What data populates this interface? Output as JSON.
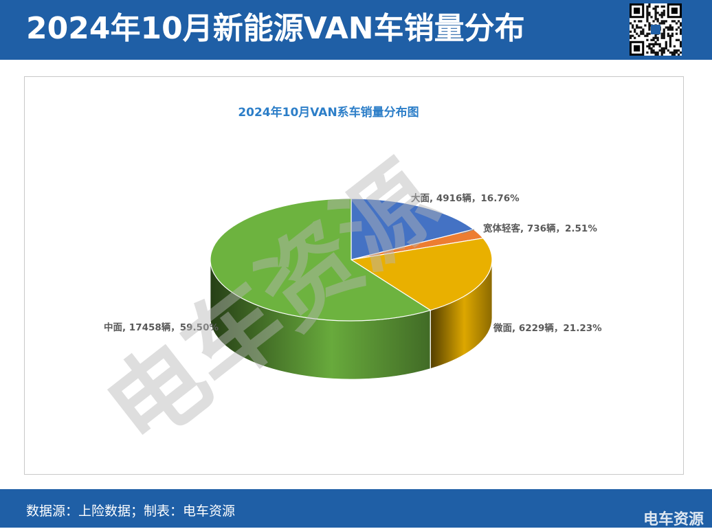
{
  "header": {
    "title": "2024年10月新能源VAN车销量分布"
  },
  "footer": {
    "source": "数据源：上险数据；制表：电车资源",
    "logo_text": "电车资源"
  },
  "watermark": {
    "text": "电车资源"
  },
  "colors": {
    "header_bg": "#1f5fa6",
    "title_blue": "#2c7ec8",
    "label_gray": "#595959"
  },
  "chart_data": {
    "type": "pie",
    "style": "3d",
    "title": "2024年10月VAN系车销量分布图",
    "slices": [
      {
        "name": "大面",
        "value": 4916,
        "unit": "辆",
        "percent": 16.76,
        "color": "#4472c4",
        "label": "大面, 4916辆，16.76%"
      },
      {
        "name": "宽体轻客",
        "value": 736,
        "unit": "辆",
        "percent": 2.51,
        "color": "#ed7d31",
        "label": "宽体轻客, 736辆，2.51%"
      },
      {
        "name": "微面",
        "value": 6229,
        "unit": "辆",
        "percent": 21.23,
        "color": "#e9b000",
        "label": "微面, 6229辆，21.23%"
      },
      {
        "name": "中面",
        "value": 17458,
        "unit": "辆",
        "percent": 59.5,
        "color": "#6db33f",
        "label": "中面, 17458辆，59.50%"
      }
    ],
    "legend": "none",
    "start_angle": "12 o'clock, clockwise"
  }
}
